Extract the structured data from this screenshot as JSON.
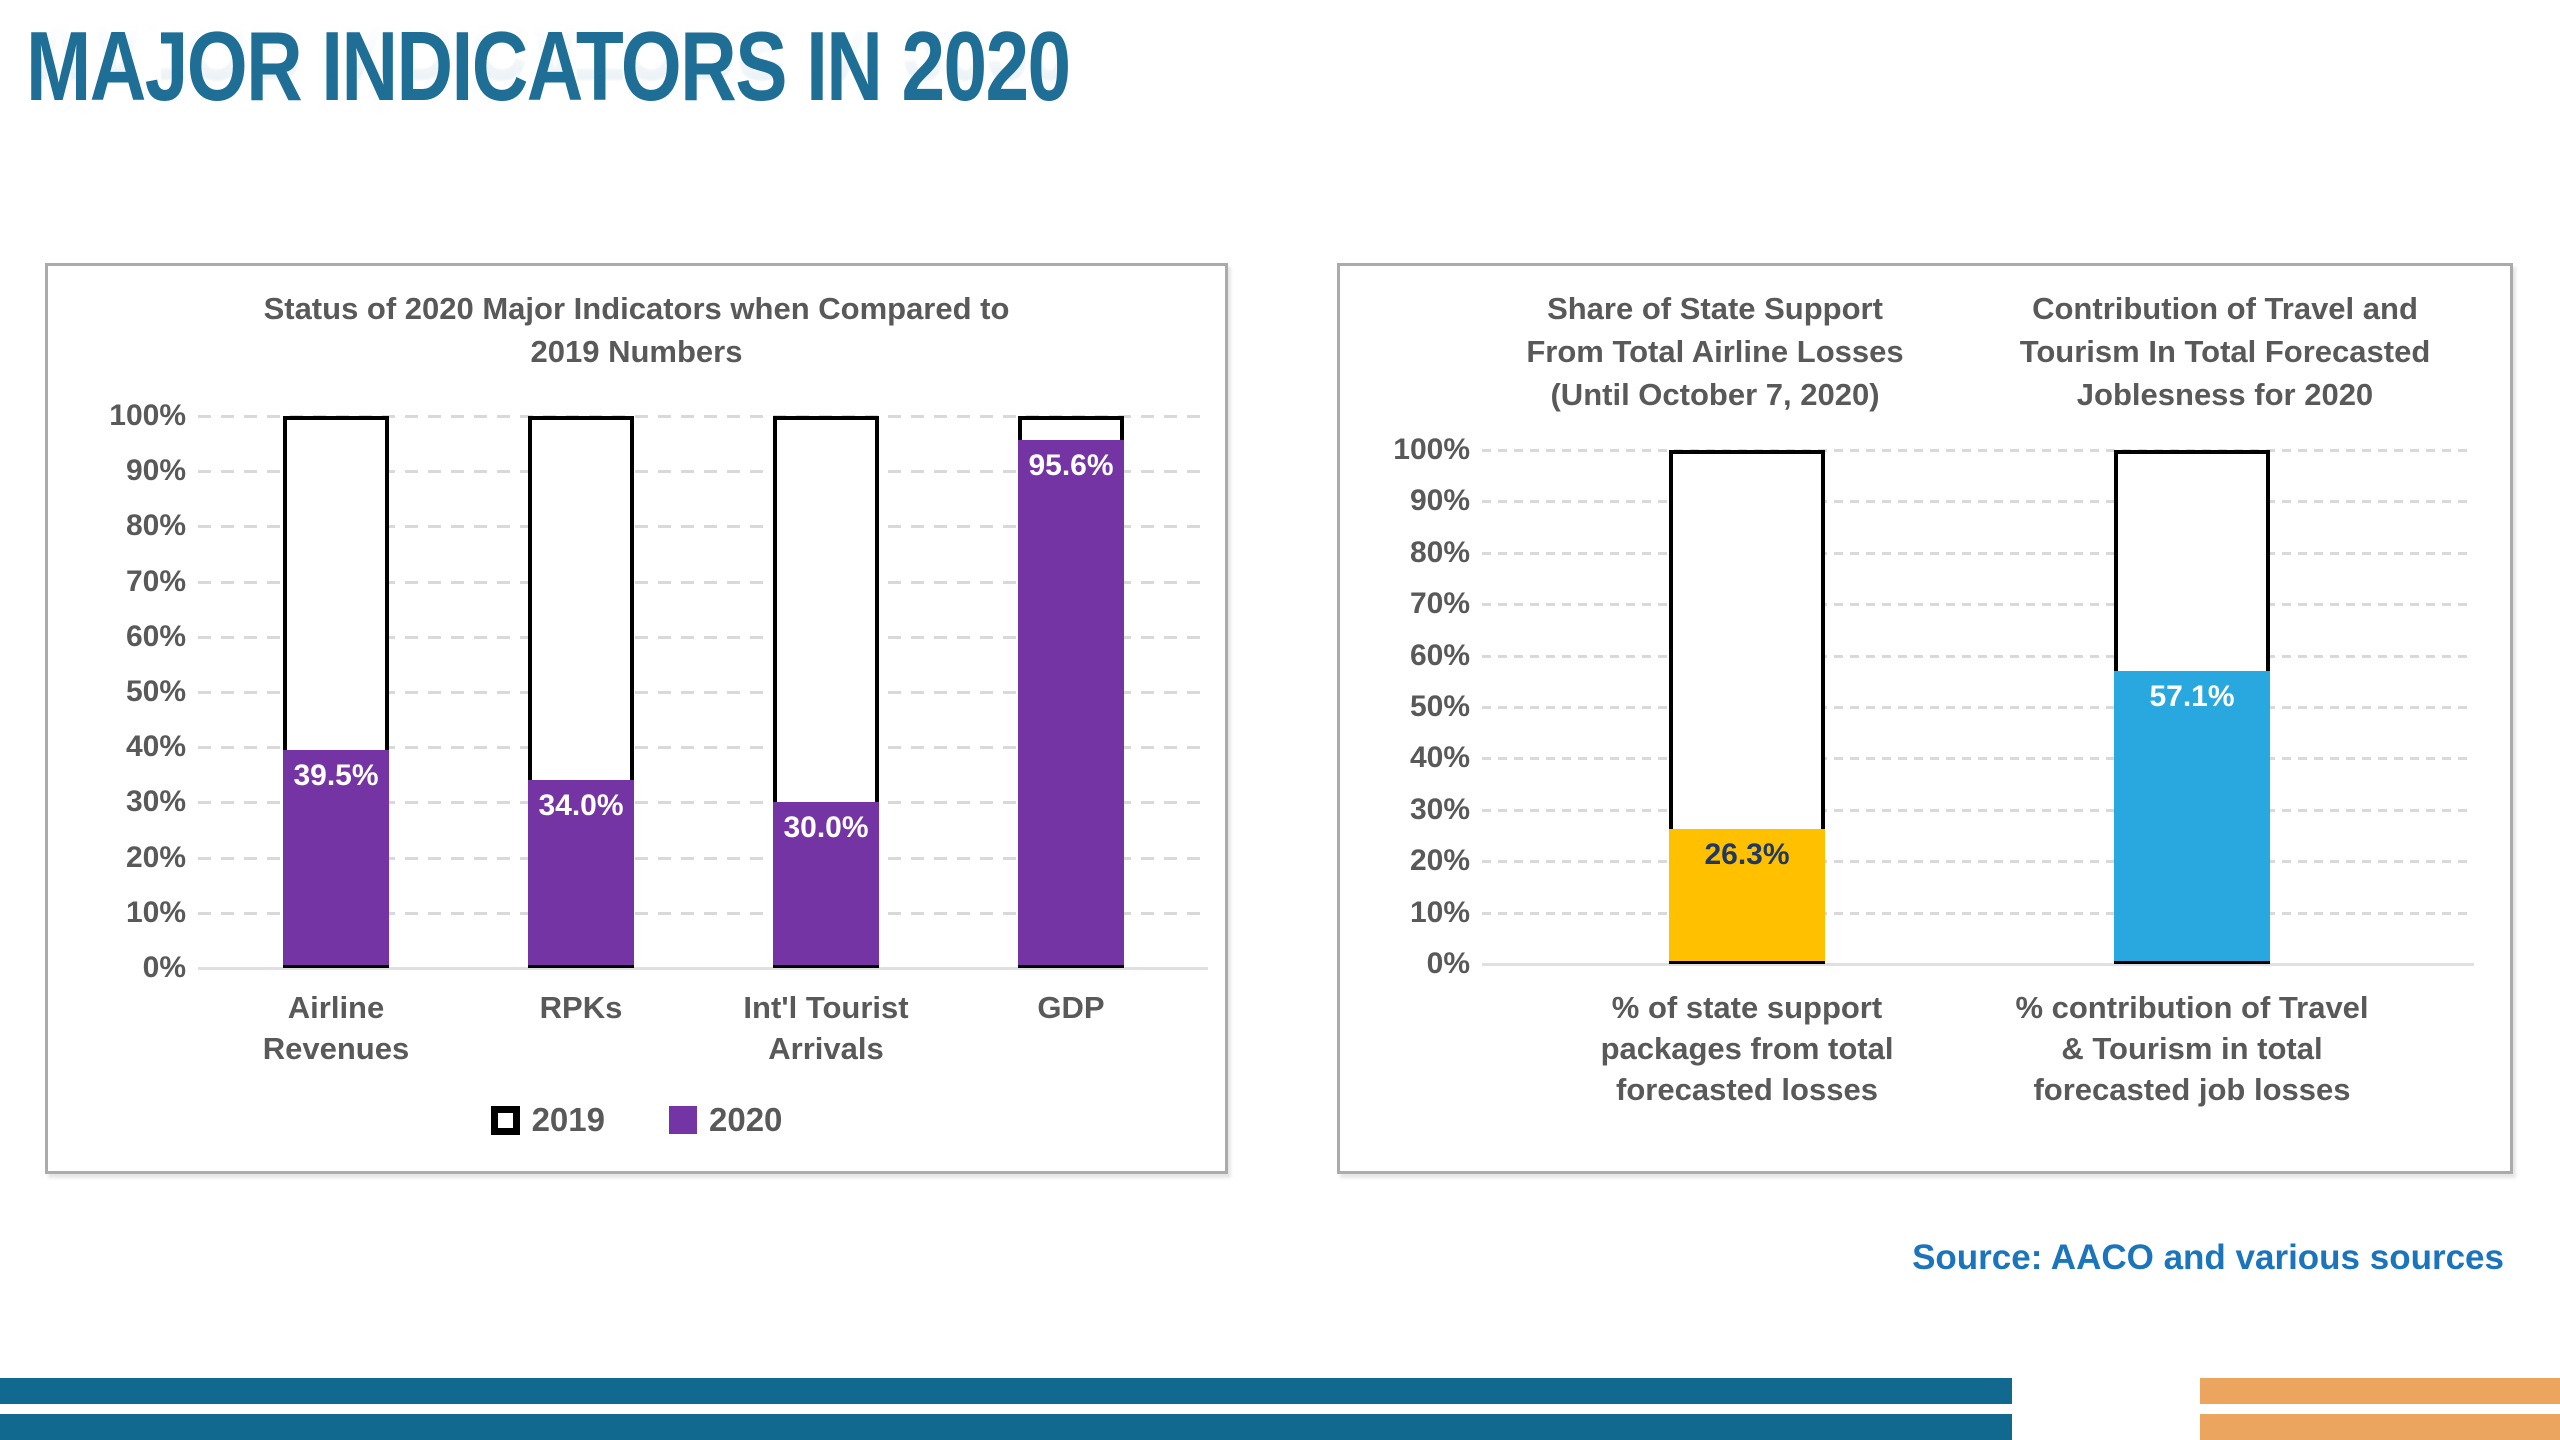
{
  "slide": {
    "title": "MAJOR INDICATORS IN 2020",
    "source": "Source: AACO and various sources"
  },
  "colors": {
    "title_teal": "#1E6E96",
    "source_blue": "#1B75BC",
    "label_gray": "#595959",
    "grid_gray": "#D9D9D9",
    "outline_black": "#000000",
    "purple_2020": "#7434A4",
    "gold_state_support": "#FFC000",
    "blue_travel_tourism": "#29A8E0",
    "navy_value_label": "#1F3864",
    "stripe_teal": "#11698F",
    "stripe_orange": "#ECA55F",
    "panel_border": "#ABABAB"
  },
  "chart_data": [
    {
      "type": "bar",
      "title": "Status of 2020 Major Indicators when Compared to 2019 Numbers",
      "title_lines": [
        "Status of 2020 Major Indicators when Compared to",
        "2019 Numbers"
      ],
      "categories": [
        "Airline Revenues",
        "RPKs",
        "Int'l Tourist Arrivals",
        "GDP"
      ],
      "category_lines": [
        [
          "Airline",
          "Revenues"
        ],
        [
          "RPKs"
        ],
        [
          "Int'l Tourist",
          "Arrivals"
        ],
        [
          "GDP"
        ]
      ],
      "series": [
        {
          "name": "2019",
          "values": [
            100,
            100,
            100,
            100
          ],
          "fill": "#FFFFFF",
          "outline": "#000000"
        },
        {
          "name": "2020",
          "values": [
            39.5,
            34.0,
            30.0,
            95.6
          ],
          "fill": "#7434A4"
        }
      ],
      "value_labels": [
        "39.5%",
        "34.0%",
        "30.0%",
        "95.6%"
      ],
      "value_label_color": "#FFFFFF",
      "y_ticks": [
        "100%",
        "90%",
        "80%",
        "70%",
        "60%",
        "50%",
        "40%",
        "30%",
        "20%",
        "10%",
        "0%"
      ],
      "ylim": [
        0,
        100
      ],
      "grid": "horizontal dashed",
      "legend_position": "bottom"
    },
    {
      "type": "bar",
      "titles": [
        "Share of State Support From Total Airline Losses (Until October 7, 2020)",
        "Contribution of Travel and Tourism In Total Forecasted Joblesness for 2020"
      ],
      "title_lines": [
        [
          "Share of State Support",
          "From Total Airline Losses",
          "(Until October 7, 2020)"
        ],
        [
          "Contribution of Travel and",
          "Tourism In Total Forecasted",
          "Joblesness for 2020"
        ]
      ],
      "categories": [
        "% of state support packages from total forecasted losses",
        "% contribution of Travel & Tourism in total forecasted job losses"
      ],
      "category_lines": [
        [
          "% of state support",
          "packages from total",
          "forecasted losses"
        ],
        [
          "% contribution of Travel",
          "& Tourism in total",
          "forecasted job losses"
        ]
      ],
      "values": [
        26.3,
        57.1
      ],
      "value_labels": [
        "26.3%",
        "57.1%"
      ],
      "bar_colors": [
        "#FFC000",
        "#29A8E0"
      ],
      "value_label_colors": [
        "#1F3864",
        "#FFFFFF"
      ],
      "outline_bar_value": 100,
      "y_ticks": [
        "100%",
        "90%",
        "80%",
        "70%",
        "60%",
        "50%",
        "40%",
        "30%",
        "20%",
        "10%",
        "0%"
      ],
      "ylim": [
        0,
        100
      ],
      "grid": "horizontal dashed"
    }
  ]
}
